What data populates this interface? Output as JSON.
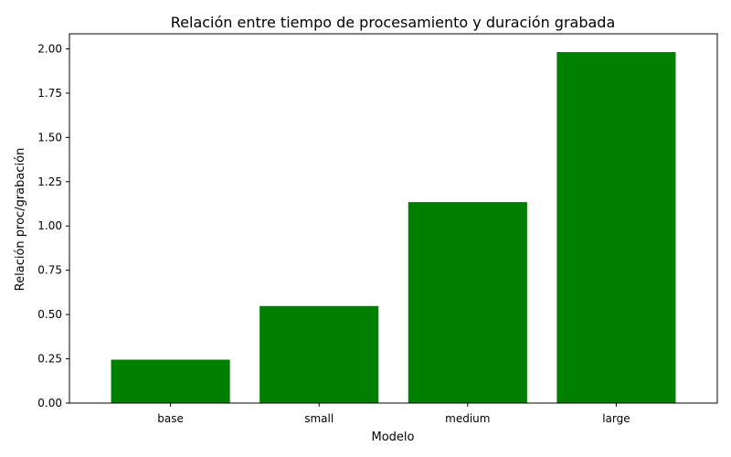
{
  "chart_data": {
    "type": "bar",
    "title": "Relación entre tiempo de procesamiento y duración grabada",
    "xlabel": "Modelo",
    "ylabel": "Relación proc/grabación",
    "categories": [
      "base",
      "small",
      "medium",
      "large"
    ],
    "values": [
      0.245,
      0.548,
      1.135,
      1.982
    ],
    "ylim": [
      0,
      2.085
    ],
    "yticks": [
      "0.00",
      "0.25",
      "0.50",
      "0.75",
      "1.00",
      "1.25",
      "1.50",
      "1.75",
      "2.00"
    ],
    "grid": false,
    "legend": "none",
    "bar_color": "#008000"
  }
}
